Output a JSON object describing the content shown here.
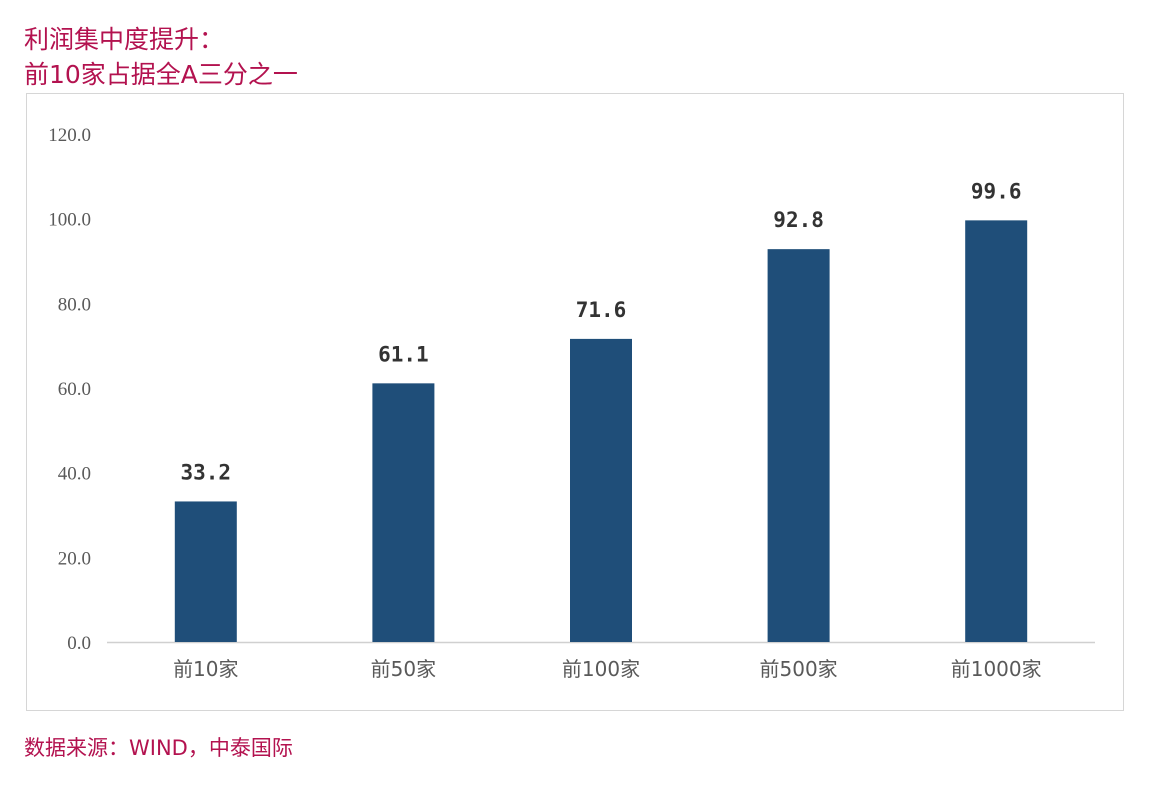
{
  "header": {
    "title_line1": "利润集中度提升：",
    "title_line2": "前10家占据全A三分之一"
  },
  "footer": {
    "source": "数据来源：WIND，中泰国际"
  },
  "colors": {
    "title": "#b3124f",
    "bar": "#1f4e79",
    "axis_text": "#595959",
    "label_text": "#333333"
  },
  "chart_data": {
    "type": "bar",
    "categories": [
      "前10家",
      "前50家",
      "前100家",
      "前500家",
      "前1000家"
    ],
    "values": [
      33.2,
      61.1,
      71.6,
      92.8,
      99.6
    ],
    "value_labels": [
      "33.2",
      "61.1",
      "71.6",
      "92.8",
      "99.6"
    ],
    "ylim": [
      0,
      120
    ],
    "yticks": [
      "0.0",
      "20.0",
      "40.0",
      "60.0",
      "80.0",
      "100.0",
      "120.0"
    ],
    "grid": false,
    "legend": "none"
  }
}
